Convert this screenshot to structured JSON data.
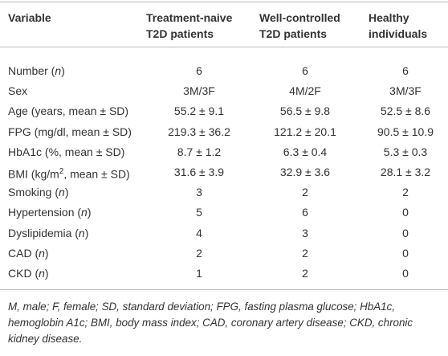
{
  "header": {
    "columns": [
      "Variable",
      "Treatment-naive T2D patients",
      "Well-controlled T2D patients",
      "Healthy individuals"
    ]
  },
  "table": {
    "rows": [
      {
        "label": [
          "Number (",
          "n",
          ")"
        ],
        "cells": [
          "6",
          "6",
          "6"
        ]
      },
      {
        "label": [
          "Sex"
        ],
        "cells": [
          "3M/3F",
          "4M/2F",
          "3M/3F"
        ]
      },
      {
        "label": [
          "Age (years, mean ± SD)"
        ],
        "cells": [
          "55.2 ± 9.1",
          "56.5 ± 9.8",
          "52.5 ± 8.6"
        ]
      },
      {
        "label": [
          "FPG (mg/dl, mean ± SD)"
        ],
        "cells": [
          "219.3 ± 36.2",
          "121.2 ± 20.1",
          "90.5 ± 10.9"
        ]
      },
      {
        "label": [
          "HbA1c (%, mean ± SD)"
        ],
        "cells": [
          "8.7 ± 1.2",
          "6.3 ± 0.4",
          "5.3 ± 0.3"
        ]
      },
      {
        "label": [
          "BMI (kg/m",
          "2",
          ", mean ± SD)"
        ],
        "cells": [
          "31.6 ± 3.9",
          "32.9 ± 3.6",
          "28.1 ± 3.2"
        ]
      },
      {
        "label": [
          "Smoking (",
          "n",
          ")"
        ],
        "cells": [
          "3",
          "2",
          "2"
        ]
      },
      {
        "label": [
          "Hypertension (",
          "n",
          ")"
        ],
        "cells": [
          "5",
          "6",
          "0"
        ]
      },
      {
        "label": [
          "Dyslipidemia (",
          "n",
          ")"
        ],
        "cells": [
          "4",
          "3",
          "0"
        ]
      },
      {
        "label": [
          "CAD (",
          "n",
          ")"
        ],
        "cells": [
          "2",
          "2",
          "0"
        ]
      },
      {
        "label": [
          "CKD (",
          "n",
          ")"
        ],
        "cells": [
          "1",
          "2",
          "0"
        ]
      }
    ]
  },
  "footnote": "M, male; F, female; SD, standard deviation; FPG, fasting plasma glucose; HbA1c, hemoglobin A1c; BMI, body mass index; CAD, coronary artery disease; CKD, chronic kidney disease."
}
